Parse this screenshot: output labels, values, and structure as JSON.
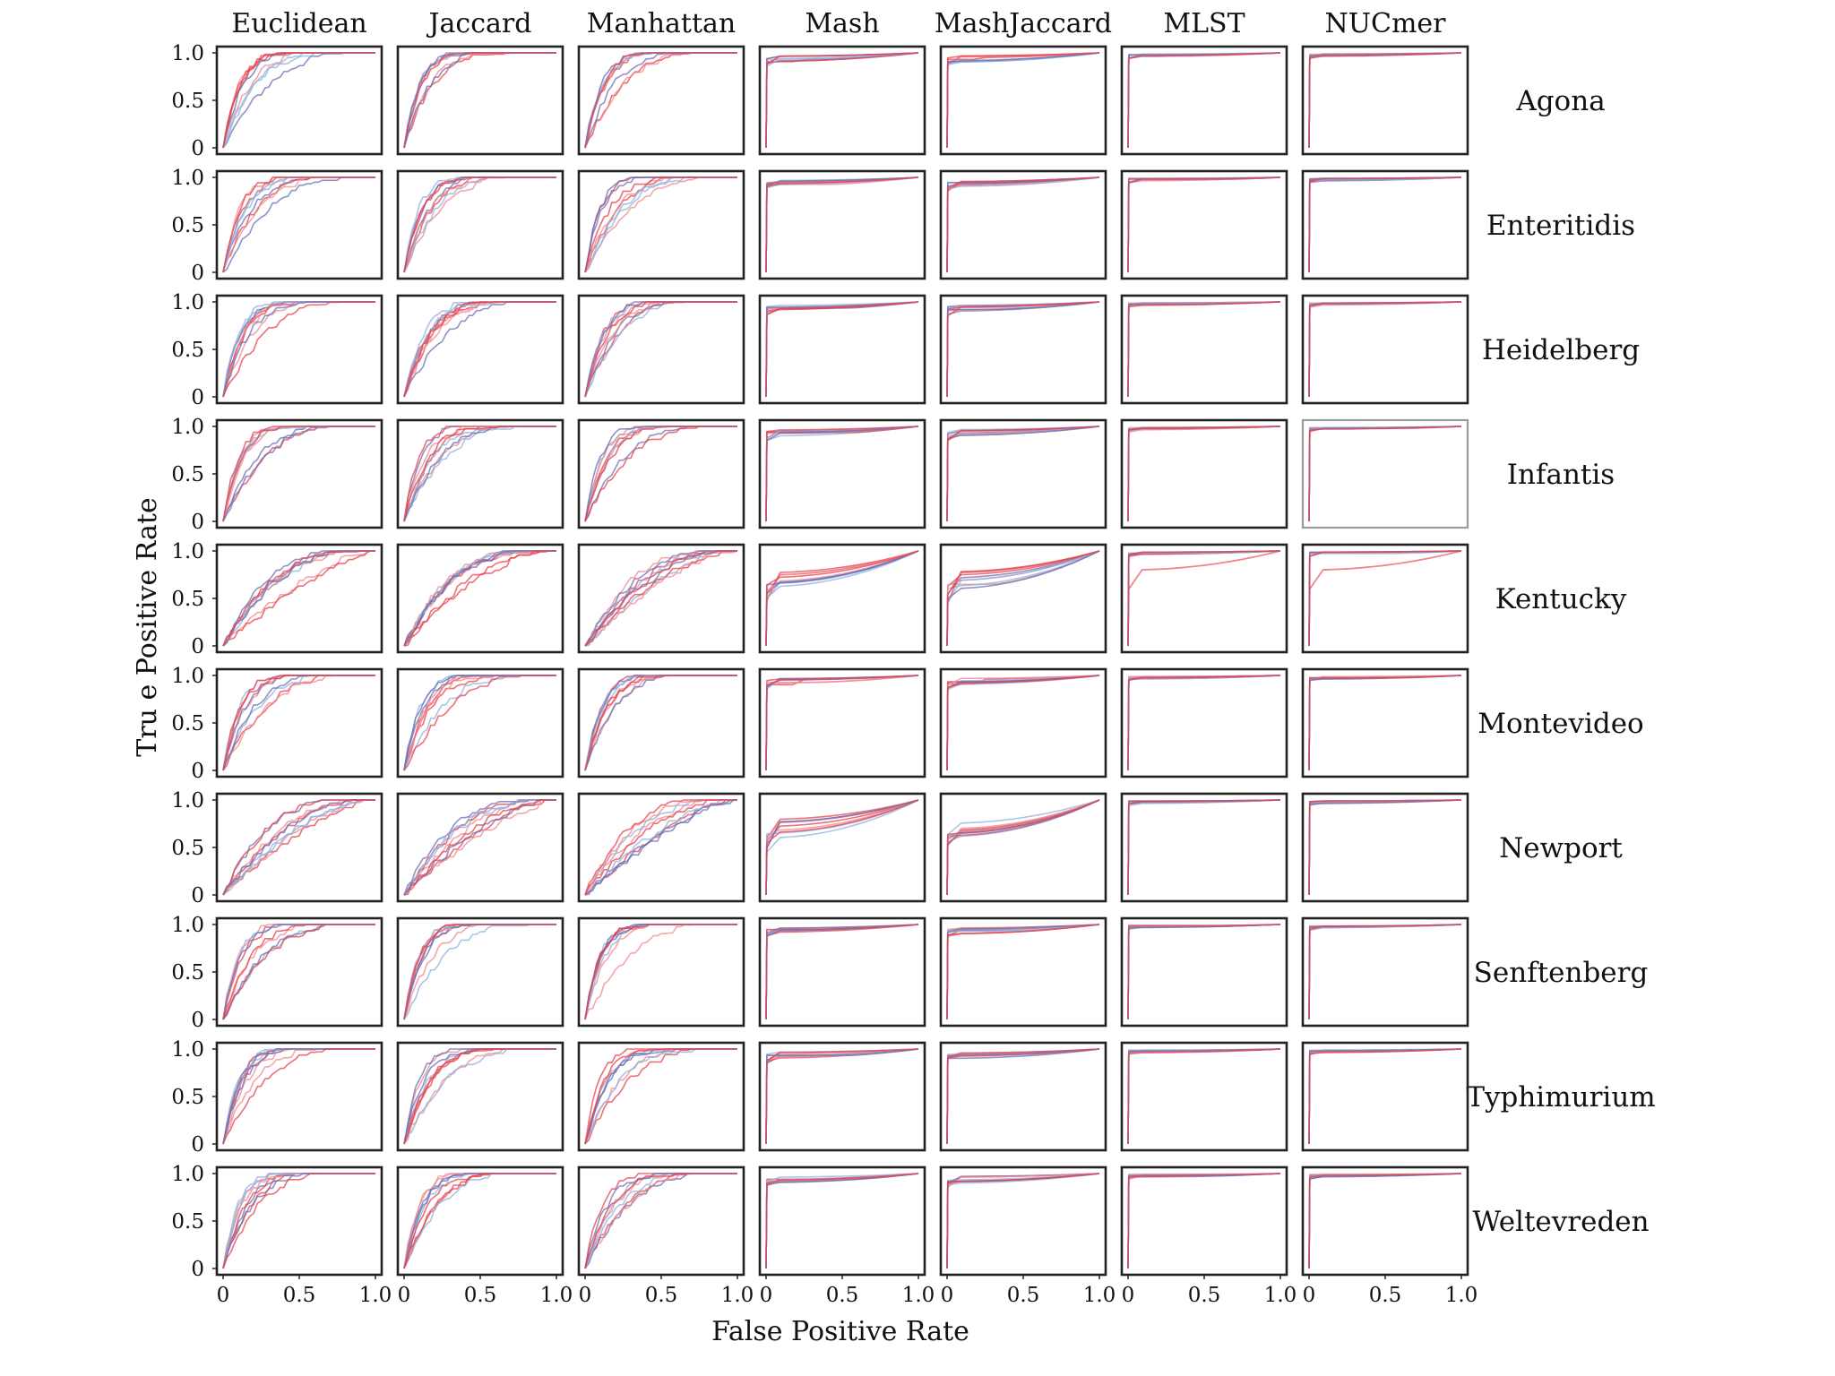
{
  "chart_data": {
    "type": "line",
    "layout": "small-multiples grid (10 rows x 7 columns), ROC curves",
    "columns": [
      "Euclidean",
      "Jaccard",
      "Manhattan",
      "Mash",
      "MashJaccard",
      "MLST",
      "NUCmer"
    ],
    "rows": [
      "Agona",
      "Enteritidis",
      "Heidelberg",
      "Infantis",
      "Kentucky",
      "Montevideo",
      "Newport",
      "Senftenberg",
      "Typhimurium",
      "Weltevreden"
    ],
    "xlabel": "False Positive Rate",
    "ylabel": "Tru e Positive Rate",
    "x_ticks": [
      "0",
      "0.5",
      "1.0"
    ],
    "y_ticks": [
      "0",
      "0.5",
      "1.0"
    ],
    "xlim": [
      0,
      1
    ],
    "ylim": [
      0,
      1
    ],
    "series_colors": [
      "#e8404a",
      "#f08a8f",
      "#8fb0dd",
      "#6a6fb4"
    ],
    "grid": false,
    "legend": "none",
    "column_curve_profiles": {
      "Euclidean": "gradual",
      "Jaccard": "gradual",
      "Manhattan": "gradual",
      "Mash": "near-perfect",
      "MashJaccard": "near-perfect",
      "MLST": "perfect",
      "NUCmer": "perfect"
    },
    "panels_with_light_frame": [
      [
        "Infantis",
        "NUCmer"
      ]
    ]
  }
}
